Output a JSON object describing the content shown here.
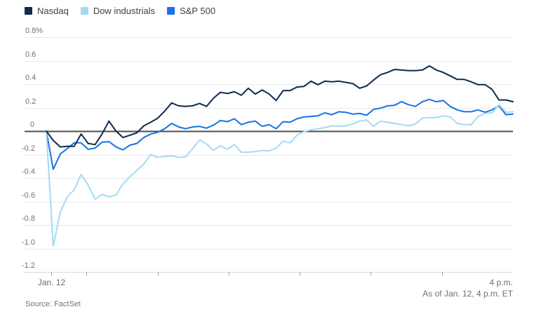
{
  "chart_data": {
    "type": "line",
    "title": "",
    "unit": "percent change",
    "as_of": "As of Jan. 12, 4 p.m. ET",
    "source": "Source: FactSet",
    "legend_position": "top-left",
    "grid": true,
    "y_axis": {
      "ylim": [
        -1.2,
        0.8
      ],
      "ticks": [
        {
          "label": "0.8%",
          "value": 0.8
        },
        {
          "label": "0.6",
          "value": 0.6
        },
        {
          "label": "0.4",
          "value": 0.4
        },
        {
          "label": "0.2",
          "value": 0.2
        },
        {
          "label": "0",
          "value": 0
        },
        {
          "label": "-0.2",
          "value": -0.2
        },
        {
          "label": "-0.4",
          "value": -0.4
        },
        {
          "label": "-0.6",
          "value": -0.6
        },
        {
          "label": "-0.8",
          "value": -0.8
        },
        {
          "label": "-1.0",
          "value": -1.0
        },
        {
          "label": "-1.2",
          "value": -1.2
        }
      ]
    },
    "x_axis": {
      "span_minutes": 394,
      "end_label": "4 p.m.",
      "ticks": [
        {
          "label": "Jan. 12",
          "minute": 4
        },
        {
          "label": "",
          "minute": 34
        },
        {
          "label": "",
          "minute": 94
        },
        {
          "label": "",
          "minute": 154
        },
        {
          "label": "",
          "minute": 214
        },
        {
          "label": "",
          "minute": 274
        },
        {
          "label": "",
          "minute": 334
        }
      ]
    },
    "series": [
      {
        "name": "Nasdaq",
        "color": "#0e2a4d",
        "z": 3,
        "values": [
          0.0,
          -0.08,
          -0.135,
          -0.13,
          -0.13,
          -0.025,
          -0.105,
          -0.115,
          -0.025,
          0.085,
          0.0,
          -0.055,
          -0.035,
          -0.015,
          0.045,
          0.075,
          0.11,
          0.17,
          0.24,
          0.215,
          0.21,
          0.215,
          0.235,
          0.21,
          0.28,
          0.33,
          0.32,
          0.335,
          0.305,
          0.365,
          0.315,
          0.35,
          0.315,
          0.26,
          0.345,
          0.345,
          0.375,
          0.38,
          0.425,
          0.395,
          0.425,
          0.42,
          0.425,
          0.415,
          0.405,
          0.365,
          0.385,
          0.435,
          0.48,
          0.5,
          0.525,
          0.52,
          0.515,
          0.515,
          0.52,
          0.555,
          0.52,
          0.5,
          0.47,
          0.44,
          0.44,
          0.42,
          0.395,
          0.395,
          0.355,
          0.265,
          0.265,
          0.25
        ]
      },
      {
        "name": "Dow industrials",
        "color": "#a3daf7",
        "z": 2,
        "values": [
          0.0,
          -0.98,
          -0.69,
          -0.56,
          -0.5,
          -0.37,
          -0.46,
          -0.58,
          -0.54,
          -0.56,
          -0.545,
          -0.45,
          -0.39,
          -0.335,
          -0.28,
          -0.2,
          -0.225,
          -0.215,
          -0.21,
          -0.225,
          -0.22,
          -0.15,
          -0.075,
          -0.11,
          -0.165,
          -0.125,
          -0.155,
          -0.115,
          -0.18,
          -0.18,
          -0.175,
          -0.165,
          -0.17,
          -0.145,
          -0.085,
          -0.1,
          -0.035,
          -0.005,
          0.01,
          0.02,
          0.03,
          0.045,
          0.04,
          0.045,
          0.06,
          0.085,
          0.095,
          0.04,
          0.085,
          0.075,
          0.065,
          0.055,
          0.045,
          0.06,
          0.11,
          0.115,
          0.115,
          0.13,
          0.12,
          0.065,
          0.055,
          0.055,
          0.125,
          0.15,
          0.155,
          0.225,
          0.16,
          0.165
        ]
      },
      {
        "name": "S&P 500",
        "color": "#1673e6",
        "z": 1,
        "values": [
          0.0,
          -0.325,
          -0.195,
          -0.15,
          -0.1,
          -0.1,
          -0.155,
          -0.145,
          -0.095,
          -0.09,
          -0.135,
          -0.16,
          -0.12,
          -0.105,
          -0.055,
          -0.025,
          -0.01,
          0.02,
          0.065,
          0.035,
          0.02,
          0.035,
          0.04,
          0.025,
          0.05,
          0.09,
          0.08,
          0.105,
          0.055,
          0.075,
          0.085,
          0.04,
          0.055,
          0.02,
          0.08,
          0.075,
          0.105,
          0.12,
          0.125,
          0.13,
          0.155,
          0.14,
          0.165,
          0.16,
          0.145,
          0.15,
          0.135,
          0.185,
          0.195,
          0.215,
          0.22,
          0.25,
          0.225,
          0.21,
          0.25,
          0.27,
          0.25,
          0.26,
          0.21,
          0.18,
          0.165,
          0.165,
          0.18,
          0.16,
          0.18,
          0.215,
          0.14,
          0.145
        ]
      }
    ],
    "colors": {
      "grid": "#e9e9e9",
      "zero_line": "#4e4e4e",
      "axis": "#d9d9d9",
      "tick": "#9b9b9b"
    }
  }
}
